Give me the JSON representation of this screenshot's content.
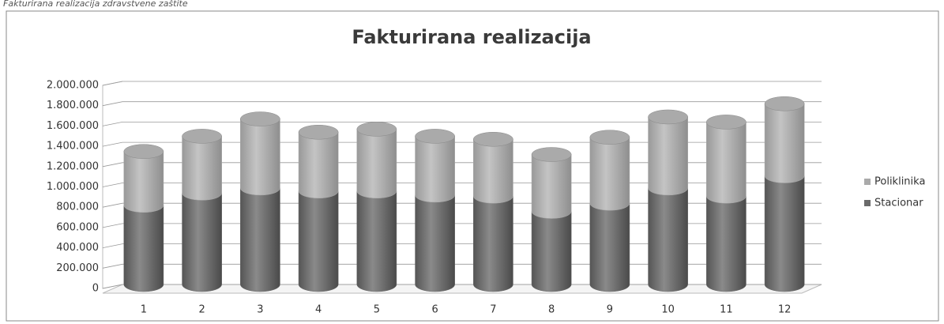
{
  "caption": "Fakturirana realizacija zdravstvene zaštite",
  "chart_data": {
    "type": "bar3d_stacked_cylinder",
    "title": "Fakturirana realizacija",
    "categories": [
      "1",
      "2",
      "3",
      "4",
      "5",
      "6",
      "7",
      "8",
      "9",
      "10",
      "11",
      "12"
    ],
    "series": [
      {
        "name": "Stacionar",
        "color": "#6a6a6a",
        "values": [
          780000,
          900000,
          950000,
          920000,
          920000,
          880000,
          870000,
          720000,
          800000,
          950000,
          870000,
          1070000
        ]
      },
      {
        "name": "Poliklinika",
        "color": "#aaaaaa",
        "values": [
          530000,
          560000,
          680000,
          580000,
          610000,
          580000,
          560000,
          560000,
          650000,
          700000,
          730000,
          710000
        ]
      }
    ],
    "ylim": [
      0,
      2000000
    ],
    "yticks": [
      0,
      {
        "value": 200000,
        "label": "200.000"
      },
      {
        "value": 400000,
        "label": "400.000"
      },
      {
        "value": 600000,
        "label": "600.000"
      },
      {
        "value": 800000,
        "label": "800.000"
      },
      {
        "value": 1000000,
        "label": "1.000.000"
      },
      {
        "value": 1200000,
        "label": "1.200.000"
      },
      {
        "value": 1400000,
        "label": "1.400.000"
      },
      {
        "value": 1600000,
        "label": "1.600.000"
      },
      {
        "value": 1800000,
        "label": "1.800.000"
      },
      {
        "value": 2000000,
        "label": "2.000.000"
      }
    ],
    "grid": true,
    "legend": "right"
  }
}
